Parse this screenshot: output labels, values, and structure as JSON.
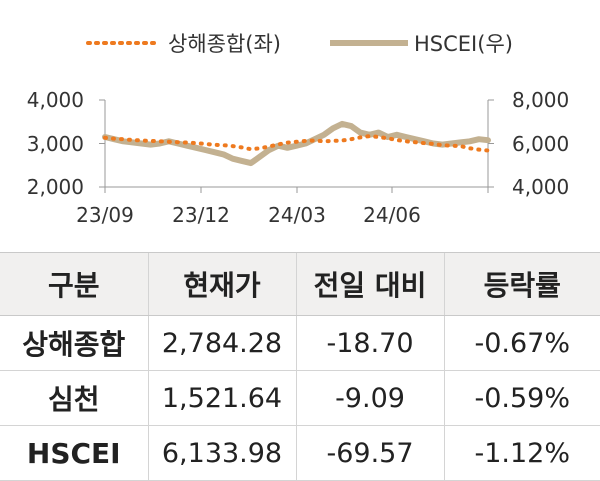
{
  "chart_data": {
    "type": "line",
    "legend": [
      "상해종합(좌)",
      "HSCEI(우)"
    ],
    "legend_position": "top",
    "x_ticks": [
      "23/09",
      "23/12",
      "24/03",
      "24/06"
    ],
    "y_left": {
      "ticks": [
        "2,000",
        "3,000",
        "4,000"
      ],
      "range": [
        2000,
        4000
      ]
    },
    "y_right": {
      "ticks": [
        "4,000",
        "6,000",
        "8,000"
      ],
      "range": [
        4000,
        8000
      ]
    },
    "grid": false,
    "series": [
      {
        "name": "상해종합(좌)",
        "axis": "left",
        "color": "#ee7a1f",
        "style": "dotted",
        "values": [
          3130,
          3110,
          3100,
          3080,
          3070,
          3060,
          3050,
          3040,
          3030,
          3020,
          3010,
          2990,
          2970,
          2960,
          2940,
          2910,
          2870,
          2890,
          2930,
          2980,
          3020,
          3040,
          3060,
          3070,
          3050,
          3060,
          3070,
          3100,
          3140,
          3170,
          3150,
          3120,
          3080,
          3050,
          3030,
          3010,
          2990,
          2960,
          2950,
          2940,
          2890,
          2860,
          2840
        ]
      },
      {
        "name": "HSCEI(우)",
        "axis": "right",
        "color": "#c3b191",
        "style": "solid",
        "values": [
          6300,
          6200,
          6100,
          6050,
          6000,
          5950,
          6000,
          6100,
          6000,
          5900,
          5800,
          5700,
          5600,
          5500,
          5300,
          5200,
          5100,
          5400,
          5700,
          5900,
          5800,
          5900,
          6000,
          6200,
          6400,
          6700,
          6900,
          6800,
          6500,
          6400,
          6500,
          6300,
          6400,
          6300,
          6200,
          6100,
          6000,
          5950,
          6000,
          6050,
          6100,
          6200,
          6150
        ]
      }
    ]
  },
  "table": {
    "headers": [
      "구분",
      "현재가",
      "전일 대비",
      "등락률"
    ],
    "rows": [
      [
        "상해종합",
        "2,784.28",
        "-18.70",
        "-0.67%"
      ],
      [
        "심천",
        "1,521.64",
        "-9.09",
        "-0.59%"
      ],
      [
        "HSCEI",
        "6,133.98",
        "-69.57",
        "-1.12%"
      ]
    ]
  }
}
